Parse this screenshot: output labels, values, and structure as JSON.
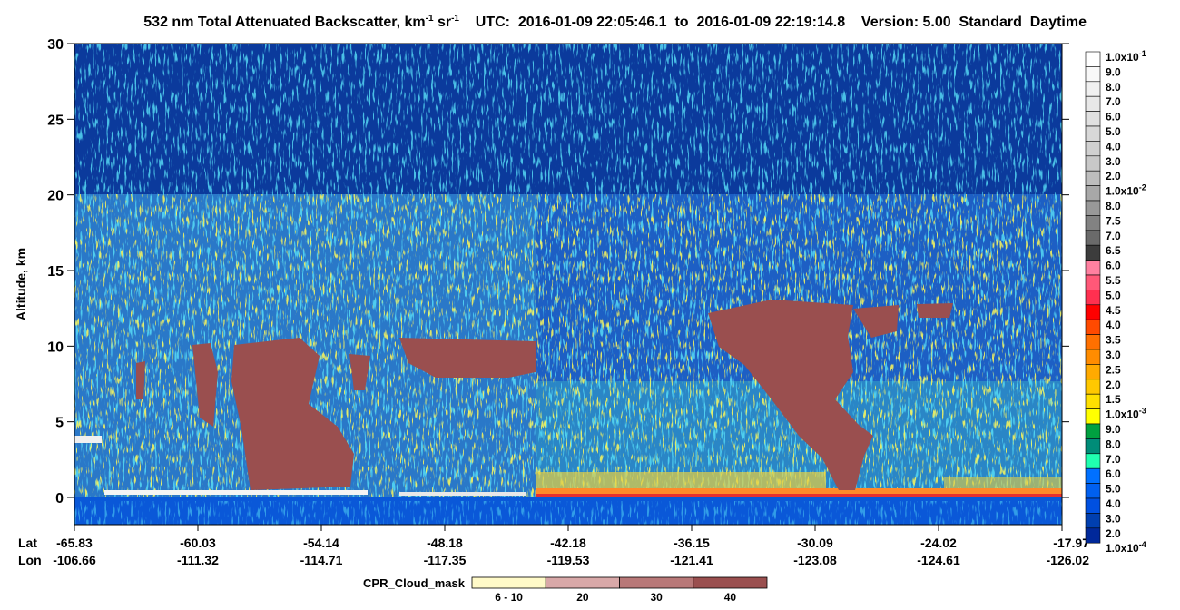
{
  "header": {
    "title": "532 nm Total Attenuated Backscatter, km",
    "title_sup1": "-1",
    "title_unit2": " sr",
    "title_sup2": "-1",
    "utc": "UTC:  2016-01-09 22:05:46.1  to  2016-01-09 22:19:14.8",
    "version": "Version: 5.00  Standard  Daytime"
  },
  "chart_data": {
    "type": "curtain",
    "ylabel": "Altitude, km",
    "ylim": [
      -1.8,
      30
    ],
    "yticks": [
      0,
      5,
      10,
      15,
      20,
      25,
      30
    ],
    "x_rows": [
      {
        "name": "Lat",
        "ticks": [
          -65.83,
          -60.03,
          -54.14,
          -48.18,
          -42.18,
          -36.15,
          -30.09,
          -24.02,
          -17.97
        ]
      },
      {
        "name": "Lon",
        "ticks": [
          -106.66,
          -111.32,
          -114.71,
          -117.35,
          -119.53,
          -121.41,
          -123.08,
          -124.61,
          -126.02
        ]
      }
    ]
  },
  "colorbar": {
    "labels": [
      {
        "text": "1.0x10",
        "sup": "-1"
      },
      "9.0",
      "8.0",
      "7.0",
      "6.0",
      "5.0",
      "4.0",
      "3.0",
      "2.0",
      {
        "text": "1.0x10",
        "sup": "-2"
      },
      "8.0",
      "7.5",
      "7.0",
      "6.5",
      "6.0",
      "5.5",
      "5.0",
      "4.5",
      "4.0",
      "3.5",
      "3.0",
      "2.5",
      "2.0",
      "1.5",
      {
        "text": "1.0x10",
        "sup": "-3"
      },
      "9.0",
      "8.0",
      "7.0",
      "6.0",
      "5.0",
      "4.0",
      "3.0",
      "2.0",
      {
        "text": "1.0x10",
        "sup": "-4"
      }
    ],
    "colors": [
      "#ffffff",
      "#f8f8f8",
      "#f0f0f0",
      "#e8e8e8",
      "#e0e0e0",
      "#d8d8d8",
      "#d0d0d0",
      "#c8c8c8",
      "#bdbdbd",
      "#a8a8a8",
      "#989898",
      "#828282",
      "#6a6a6a",
      "#3c3c3c",
      "#ff80a0",
      "#ff5878",
      "#ff3050",
      "#ff0000",
      "#ff4a00",
      "#ff7000",
      "#ff8c00",
      "#ffaa00",
      "#ffc800",
      "#ffe000",
      "#ffff00",
      "#00a040",
      "#008c78",
      "#20ffb0",
      "#0070ff",
      "#0060f0",
      "#0050e0",
      "#003fb0",
      "#00289a"
    ]
  },
  "cpr_legend": {
    "title": "CPR_Cloud_mask",
    "labels": [
      "6 - 10",
      "20",
      "30",
      "40"
    ],
    "colors": [
      "#fffac8",
      "#d8a8a8",
      "#b87878",
      "#9a4f4f"
    ]
  }
}
